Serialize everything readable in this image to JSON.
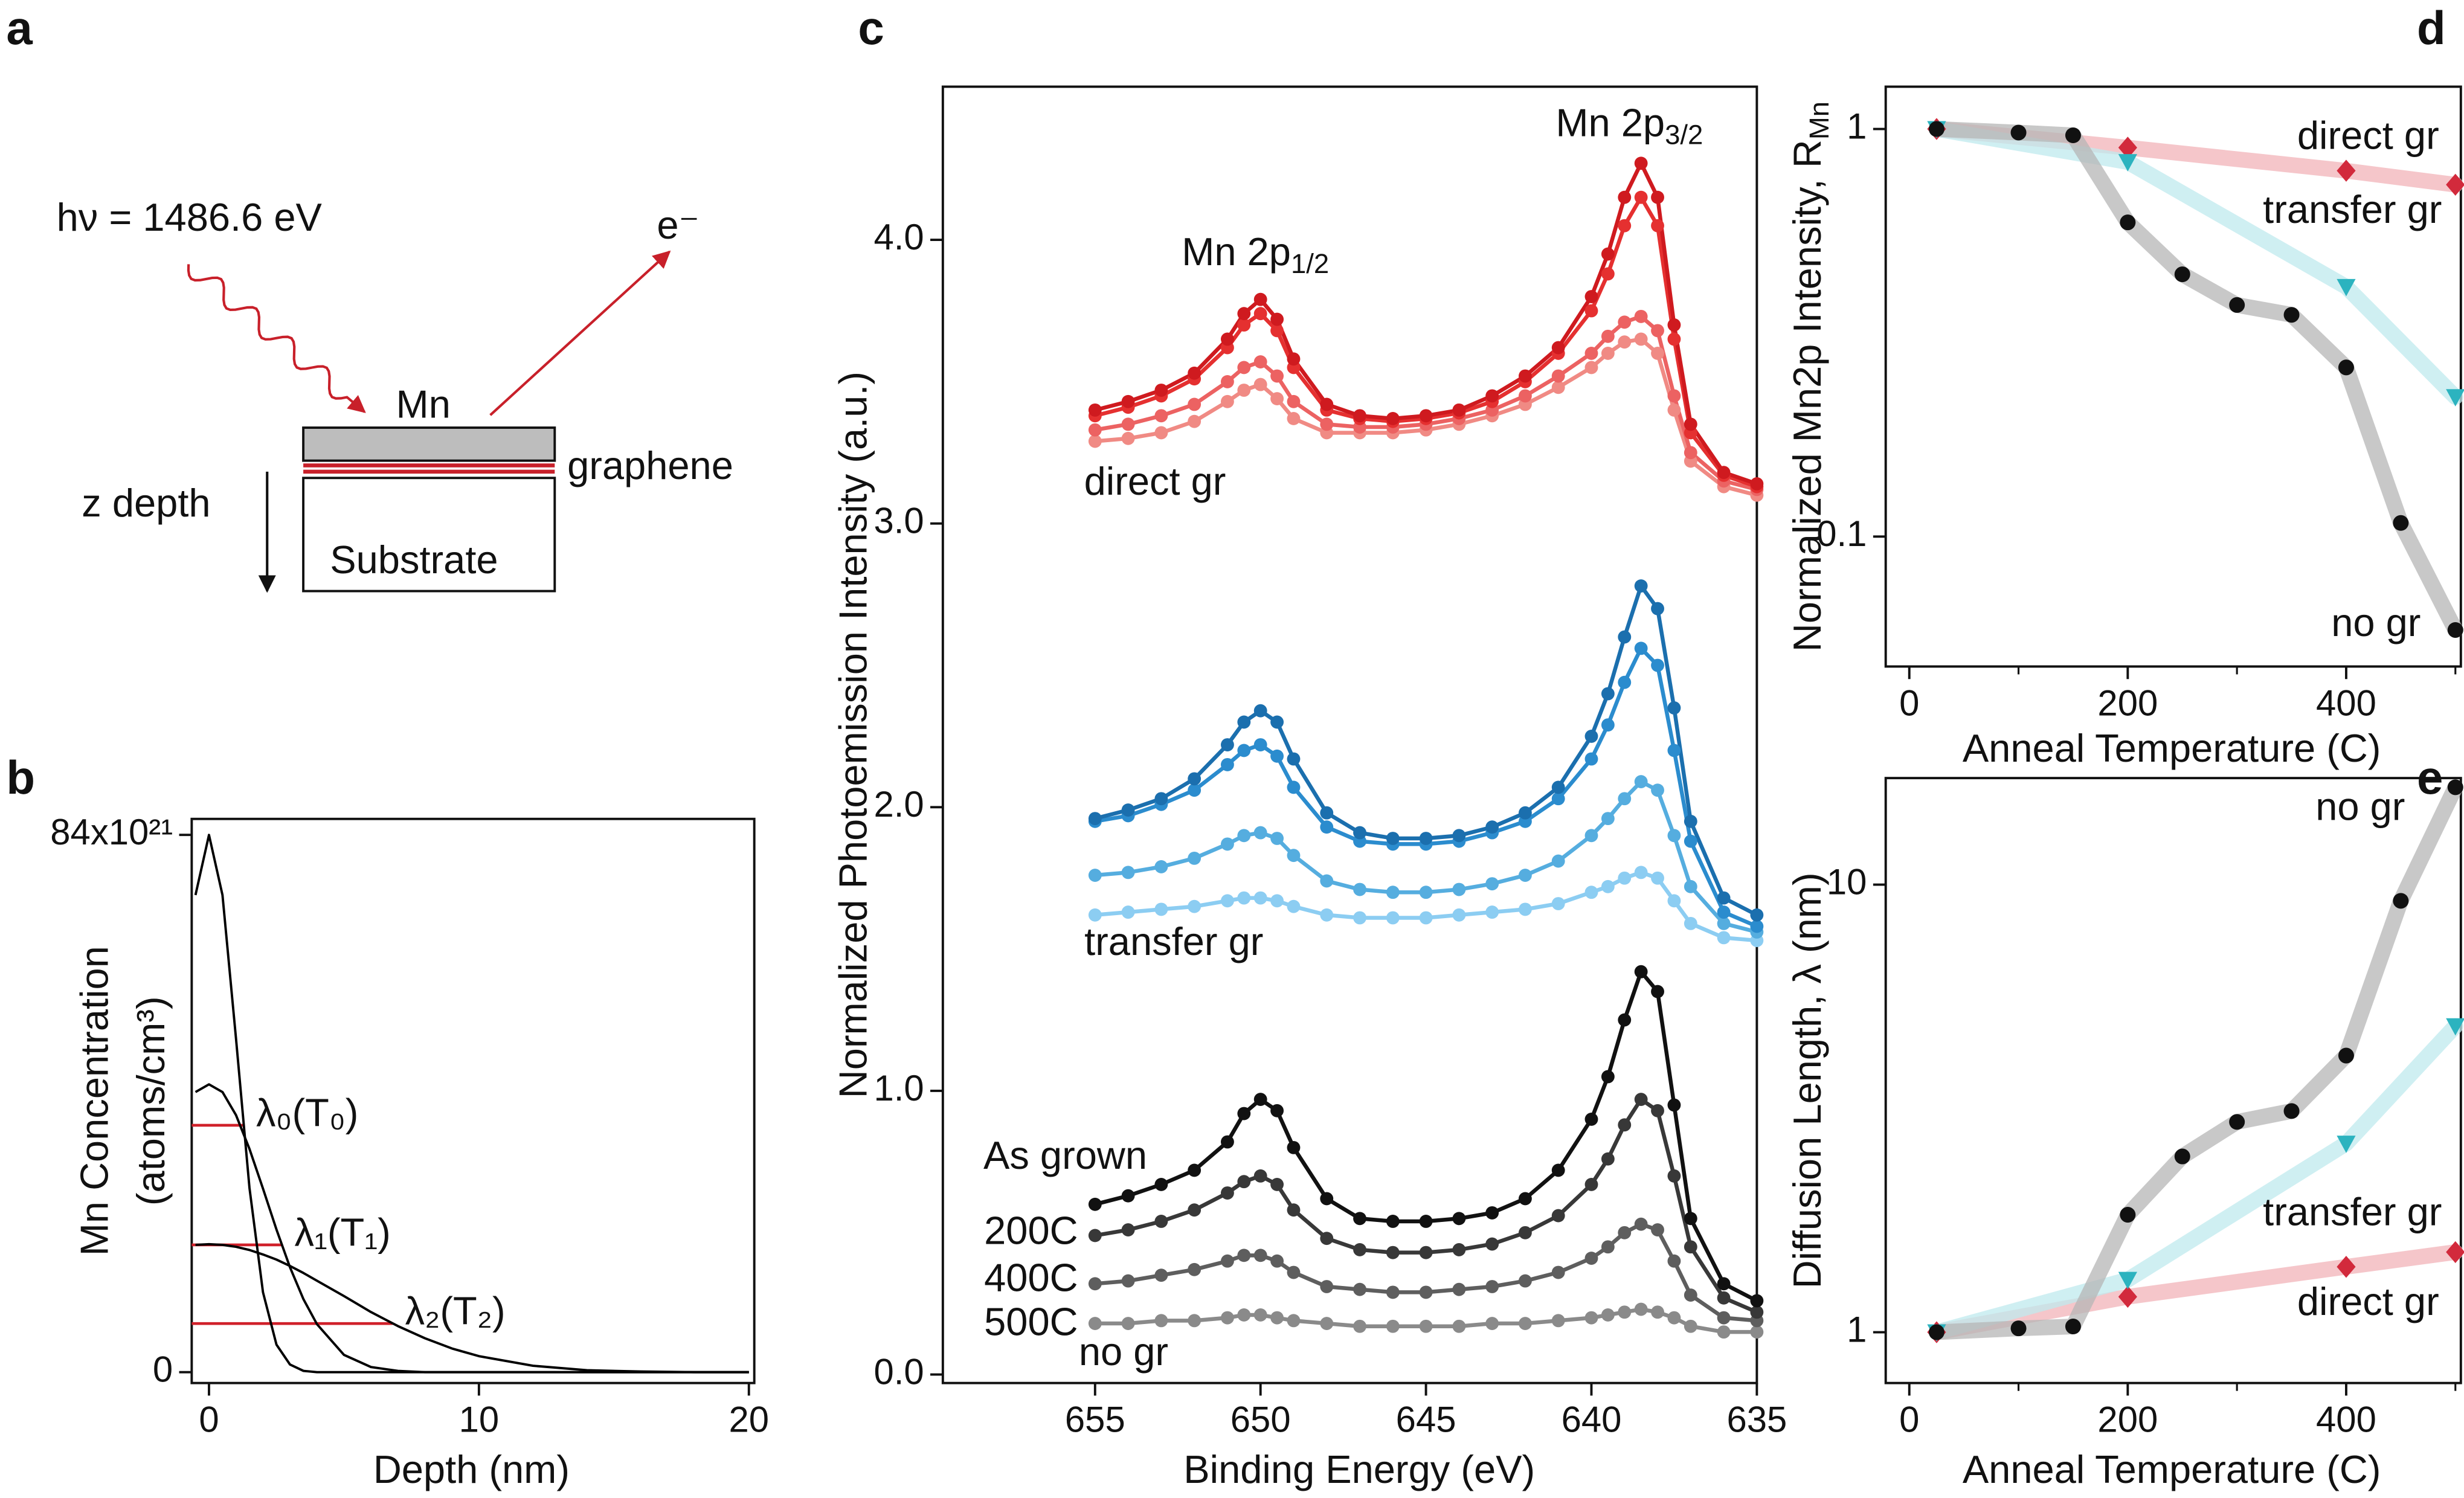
{
  "diagram": {
    "label": "a",
    "photon": "hν = 1486.6 eV",
    "electron": "e⁻",
    "layer": "Mn",
    "interlayer": "graphene",
    "depth": "z depth",
    "substrate": "Substrate"
  },
  "chart_data": [
    {
      "label": "b",
      "type": "line",
      "xlabel": "Depth (nm)",
      "ylabel": [
        "Mn Concentration",
        "(atoms/cm³)"
      ],
      "xlim": [
        -0.64,
        20.2
      ],
      "ylim": [
        -1.7,
        86.5
      ],
      "xticks": [
        0,
        10,
        20
      ],
      "yticks": [
        0,
        {
          "value": 84,
          "label": "84x10²¹"
        }
      ],
      "x": [
        -0.5,
        0,
        0.5,
        1,
        1.5,
        2,
        2.5,
        3,
        3.5,
        4,
        5,
        6,
        7,
        8,
        9,
        10,
        12,
        14,
        16,
        18,
        20
      ],
      "series": [
        {
          "color": "#000000",
          "values": [
            74.6,
            84,
            74.6,
            52.2,
            28.8,
            12.5,
            4.3,
            1.2,
            0.2,
            0,
            0,
            0,
            0,
            0,
            0,
            0,
            0,
            0,
            0,
            0,
            0
          ]
        },
        {
          "color": "#000000",
          "values": [
            43.8,
            45,
            43.8,
            40.2,
            34.9,
            28.7,
            22.3,
            16.4,
            11.4,
            7.5,
            2.7,
            0.8,
            0.2,
            0,
            0,
            0,
            0,
            0,
            0,
            0,
            0
          ]
        },
        {
          "color": "#000000",
          "values": [
            19.9,
            20,
            19.9,
            19.6,
            19.1,
            18.4,
            17.6,
            16.6,
            15.5,
            14.3,
            11.9,
            9.4,
            7.2,
            5.3,
            3.7,
            2.5,
            1.0,
            0.3,
            0.1,
            0,
            0
          ]
        }
      ],
      "levels": [
        {
          "label": "λ₀(T₀)",
          "value": 38.6,
          "x": 1.28,
          "color": "#d0202a"
        },
        {
          "label": "λ₁(T₁)",
          "value": 19.9,
          "x": 2.7,
          "color": "#d0202a"
        },
        {
          "label": "λ₂(T₂)",
          "value": 7.6,
          "x": 6.8,
          "color": "#d0202a"
        }
      ]
    },
    {
      "label": "c",
      "type": "line",
      "markers": true,
      "xlabel": "Binding Energy (eV)",
      "ylabel": "Normalized Photoemission Intensity (a.u.)",
      "xlim": [
        659.6,
        635
      ],
      "ylim": [
        -0.03,
        4.54
      ],
      "xticks": [
        655,
        650,
        645,
        640,
        635
      ],
      "yticks": [
        {
          "value": 0,
          "label": "0.0"
        },
        {
          "value": 1,
          "label": "1.0"
        },
        {
          "value": 2,
          "label": "2.0"
        },
        {
          "value": 3,
          "label": "3.0"
        },
        {
          "value": 4,
          "label": "4.0"
        }
      ],
      "x": [
        655,
        654,
        653,
        652,
        651,
        650.5,
        650,
        649.5,
        649,
        648,
        647,
        646,
        645,
        644,
        643,
        642,
        641,
        640,
        639.5,
        639,
        638.5,
        638,
        637.5,
        637,
        636,
        635
      ],
      "peaks": [
        {
          "text": "Mn 2p",
          "sub": "1/2"
        },
        {
          "text": "Mn 2p",
          "sub": "3/2"
        }
      ],
      "group_labels": [
        {
          "text": "direct gr",
          "color": "#d9262b"
        },
        {
          "text": "transfer gr",
          "color": "#2ab7c3"
        },
        {
          "text": "no gr",
          "color": "#111111"
        }
      ],
      "series": [
        {
          "color": "#f08a84",
          "values": [
            3.29,
            3.3,
            3.32,
            3.36,
            3.43,
            3.47,
            3.49,
            3.44,
            3.37,
            3.32,
            3.32,
            3.32,
            3.33,
            3.35,
            3.38,
            3.42,
            3.48,
            3.55,
            3.6,
            3.64,
            3.65,
            3.6,
            3.4,
            3.22,
            3.13,
            3.1
          ]
        },
        {
          "color": "#ec6262",
          "values": [
            3.33,
            3.35,
            3.38,
            3.42,
            3.5,
            3.55,
            3.57,
            3.52,
            3.43,
            3.35,
            3.34,
            3.34,
            3.35,
            3.37,
            3.4,
            3.45,
            3.52,
            3.6,
            3.66,
            3.71,
            3.73,
            3.68,
            3.45,
            3.25,
            3.15,
            3.12
          ]
        },
        {
          "color": "#e53030",
          "values": [
            3.38,
            3.41,
            3.45,
            3.51,
            3.62,
            3.7,
            3.74,
            3.68,
            3.55,
            3.4,
            3.37,
            3.36,
            3.37,
            3.39,
            3.43,
            3.5,
            3.6,
            3.75,
            3.88,
            4.05,
            4.15,
            4.05,
            3.65,
            3.32,
            3.17,
            3.13
          ]
        },
        {
          "color": "#cf1a1f",
          "values": [
            3.4,
            3.43,
            3.47,
            3.53,
            3.65,
            3.74,
            3.79,
            3.72,
            3.58,
            3.42,
            3.38,
            3.37,
            3.38,
            3.4,
            3.45,
            3.52,
            3.62,
            3.8,
            3.95,
            4.15,
            4.27,
            4.15,
            3.7,
            3.35,
            3.18,
            3.14
          ]
        },
        {
          "color": "#8ccdf2",
          "values": [
            1.62,
            1.63,
            1.64,
            1.65,
            1.67,
            1.68,
            1.68,
            1.67,
            1.65,
            1.62,
            1.61,
            1.61,
            1.61,
            1.62,
            1.63,
            1.64,
            1.66,
            1.7,
            1.72,
            1.75,
            1.77,
            1.75,
            1.67,
            1.59,
            1.54,
            1.53
          ]
        },
        {
          "color": "#55addf",
          "values": [
            1.76,
            1.77,
            1.79,
            1.82,
            1.87,
            1.9,
            1.91,
            1.89,
            1.83,
            1.74,
            1.71,
            1.7,
            1.7,
            1.71,
            1.73,
            1.76,
            1.81,
            1.9,
            1.96,
            2.03,
            2.09,
            2.06,
            1.9,
            1.72,
            1.59,
            1.56
          ]
        },
        {
          "color": "#2b8cce",
          "values": [
            1.95,
            1.97,
            2.01,
            2.06,
            2.15,
            2.2,
            2.22,
            2.18,
            2.07,
            1.93,
            1.88,
            1.87,
            1.87,
            1.88,
            1.91,
            1.95,
            2.03,
            2.17,
            2.29,
            2.44,
            2.56,
            2.5,
            2.2,
            1.88,
            1.63,
            1.58
          ]
        },
        {
          "color": "#1b6fae",
          "values": [
            1.96,
            1.99,
            2.03,
            2.1,
            2.22,
            2.3,
            2.34,
            2.3,
            2.17,
            1.98,
            1.91,
            1.89,
            1.89,
            1.9,
            1.93,
            1.98,
            2.07,
            2.25,
            2.4,
            2.6,
            2.78,
            2.7,
            2.35,
            1.95,
            1.68,
            1.62
          ]
        },
        {
          "name": "500C",
          "color": "#8a8a8a",
          "values": [
            0.18,
            0.18,
            0.19,
            0.19,
            0.2,
            0.21,
            0.21,
            0.2,
            0.19,
            0.18,
            0.17,
            0.17,
            0.17,
            0.17,
            0.18,
            0.18,
            0.19,
            0.2,
            0.21,
            0.22,
            0.23,
            0.22,
            0.2,
            0.17,
            0.15,
            0.15
          ]
        },
        {
          "name": "400C",
          "color": "#5e5e5e",
          "values": [
            0.32,
            0.33,
            0.35,
            0.37,
            0.4,
            0.42,
            0.42,
            0.4,
            0.36,
            0.31,
            0.3,
            0.29,
            0.29,
            0.3,
            0.31,
            0.33,
            0.36,
            0.41,
            0.45,
            0.5,
            0.53,
            0.51,
            0.4,
            0.28,
            0.2,
            0.19
          ]
        },
        {
          "name": "200C",
          "color": "#383838",
          "values": [
            0.49,
            0.51,
            0.54,
            0.58,
            0.64,
            0.68,
            0.7,
            0.67,
            0.58,
            0.48,
            0.44,
            0.43,
            0.43,
            0.44,
            0.46,
            0.5,
            0.56,
            0.67,
            0.76,
            0.88,
            0.97,
            0.93,
            0.7,
            0.45,
            0.27,
            0.22
          ]
        },
        {
          "name": "As grown",
          "color": "#111111",
          "values": [
            0.6,
            0.63,
            0.67,
            0.72,
            0.82,
            0.92,
            0.97,
            0.93,
            0.8,
            0.62,
            0.55,
            0.54,
            0.54,
            0.55,
            0.57,
            0.62,
            0.72,
            0.9,
            1.05,
            1.25,
            1.42,
            1.35,
            0.95,
            0.55,
            0.32,
            0.26
          ]
        }
      ]
    },
    {
      "label": "d",
      "type": "line",
      "log_y": true,
      "xlabel": "Anneal Temperature (C)",
      "ylabel": "Normalized Mn2p Intensity, R",
      "ylabel_sub": "Mn",
      "xlim": [
        -21.6,
        505
      ],
      "ylim": [
        0.048,
        1.27
      ],
      "xticks": [
        0,
        200,
        400
      ],
      "xminorticks": [
        100,
        300,
        500
      ],
      "yticks": [
        1,
        0.1
      ],
      "series": [
        {
          "name": "direct gr",
          "color": "#d22a3c",
          "line_color": "#f2b3b8",
          "marker": "diamond",
          "x": [
            25,
            200,
            400,
            500
          ],
          "values": [
            1,
            0.9,
            0.79,
            0.73
          ]
        },
        {
          "name": "transfer gr",
          "color": "#2cb3bf",
          "line_color": "#bfe9ee",
          "marker": "triangle",
          "x": [
            25,
            200,
            400,
            500
          ],
          "values": [
            1,
            0.83,
            0.41,
            0.22
          ]
        },
        {
          "name": "no gr",
          "color": "#111111",
          "line_color": "#b5b5b5",
          "marker": "circle",
          "x": [
            25,
            100,
            150,
            200,
            250,
            300,
            350,
            400,
            450,
            500
          ],
          "values": [
            1,
            0.98,
            0.965,
            0.59,
            0.44,
            0.37,
            0.35,
            0.26,
            0.108,
            0.059
          ]
        }
      ]
    },
    {
      "label": "e",
      "type": "line",
      "log_y": true,
      "xlabel": "Anneal Temperature (C)",
      "ylabel": "Diffusion Length, λ (nm)",
      "xlim": [
        -21.6,
        505
      ],
      "ylim": [
        0.77,
        17.3
      ],
      "xticks": [
        0,
        200,
        400
      ],
      "xminorticks": [
        100,
        300,
        500
      ],
      "yticks": [
        1,
        10
      ],
      "series": [
        {
          "name": "direct gr",
          "color": "#d22a3c",
          "line_color": "#f2b3b8",
          "marker": "diamond",
          "x": [
            25,
            200,
            400,
            500
          ],
          "values": [
            1,
            1.2,
            1.4,
            1.51
          ]
        },
        {
          "name": "transfer gr",
          "color": "#2cb3bf",
          "line_color": "#bfe9ee",
          "marker": "triangle",
          "x": [
            25,
            200,
            400,
            500
          ],
          "values": [
            1,
            1.31,
            2.64,
            4.83
          ]
        },
        {
          "name": "no gr",
          "color": "#111111",
          "line_color": "#b5b5b5",
          "marker": "circle",
          "x": [
            25,
            100,
            150,
            200,
            250,
            300,
            350,
            400,
            450,
            500
          ],
          "values": [
            1,
            1.02,
            1.03,
            1.83,
            2.47,
            2.95,
            3.12,
            4.15,
            9.2,
            16.5
          ]
        }
      ]
    }
  ]
}
